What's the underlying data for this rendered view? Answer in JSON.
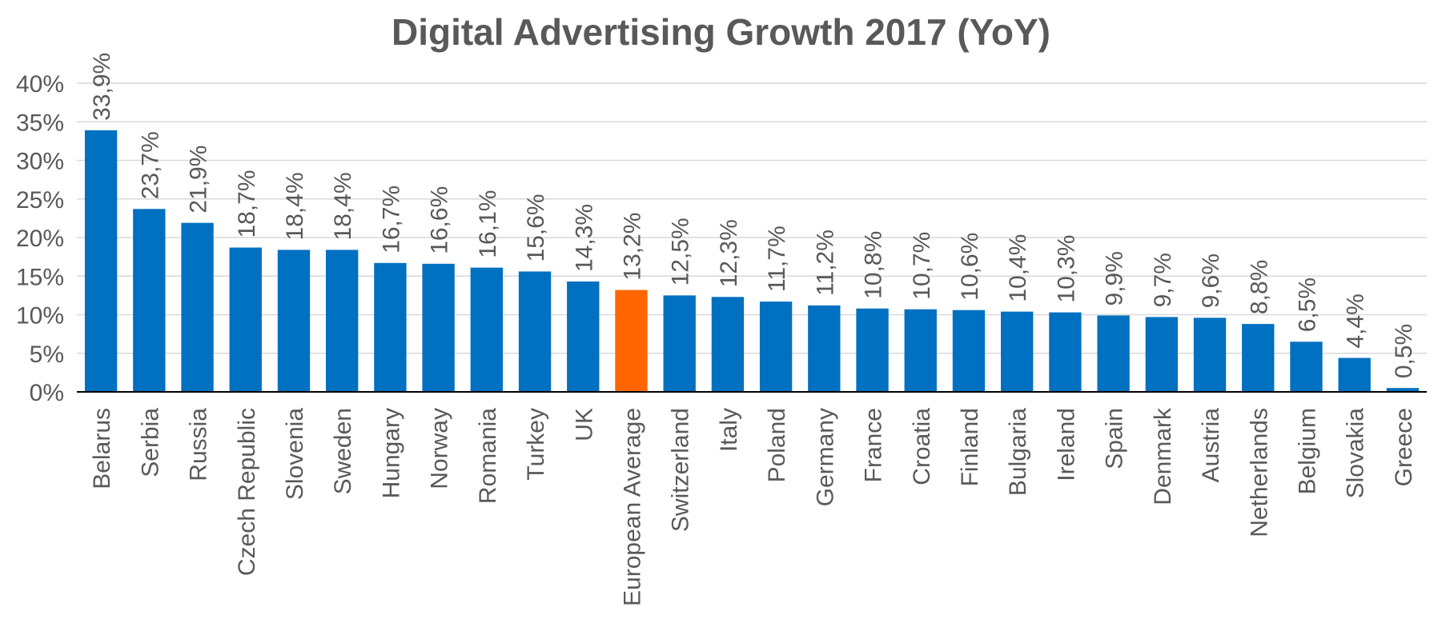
{
  "chart_data": {
    "type": "bar",
    "title": "Digital Advertising Growth 2017 (YoY)",
    "xlabel": "",
    "ylabel": "",
    "ylim": [
      0,
      40
    ],
    "yticks": [
      "0%",
      "5%",
      "10%",
      "15%",
      "20%",
      "25%",
      "30%",
      "35%",
      "40%"
    ],
    "grid": true,
    "legend": "none",
    "categories": [
      "Belarus",
      "Serbia",
      "Russia",
      "Czech Republic",
      "Slovenia",
      "Sweden",
      "Hungary",
      "Norway",
      "Romania",
      "Turkey",
      "UK",
      "European Average",
      "Switzerland",
      "Italy",
      "Poland",
      "Germany",
      "France",
      "Croatia",
      "Finland",
      "Bulgaria",
      "Ireland",
      "Spain",
      "Denmark",
      "Austria",
      "Netherlands",
      "Belgium",
      "Slovakia",
      "Greece"
    ],
    "values": [
      33.9,
      23.7,
      21.9,
      18.7,
      18.4,
      18.4,
      16.7,
      16.6,
      16.1,
      15.6,
      14.3,
      13.2,
      12.5,
      12.3,
      11.7,
      11.2,
      10.8,
      10.7,
      10.6,
      10.4,
      10.3,
      9.9,
      9.7,
      9.6,
      8.8,
      6.5,
      4.4,
      0.5
    ],
    "data_labels": [
      "33,9%",
      "23,7%",
      "21,9%",
      "18,7%",
      "18,4%",
      "18,4%",
      "16,7%",
      "16,6%",
      "16,1%",
      "15,6%",
      "14,3%",
      "13,2%",
      "12,5%",
      "12,3%",
      "11,7%",
      "11,2%",
      "10,8%",
      "10,7%",
      "10,6%",
      "10,4%",
      "10,3%",
      "9,9%",
      "9,7%",
      "9,6%",
      "8,8%",
      "6,5%",
      "4,4%",
      "0,5%"
    ],
    "highlight_category": "European Average",
    "colors": {
      "bar": "#0070C0",
      "highlight": "#FF6600",
      "grid": "#D9D9D9",
      "text": "#595959",
      "axis": "#000000"
    }
  }
}
